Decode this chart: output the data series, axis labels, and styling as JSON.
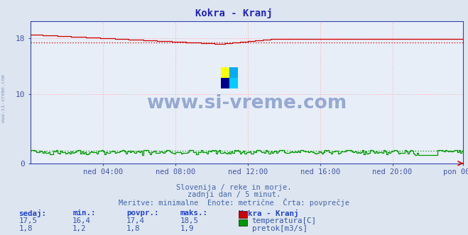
{
  "title": "Kokra - Kranj",
  "title_color": "#2222bb",
  "bg_color": "#dde5f0",
  "plot_bg_color": "#e8eef8",
  "grid_color_h": "#ffaaaa",
  "grid_color_v": "#ffaaaa",
  "x_label_color": "#4455aa",
  "y_label_color": "#4455aa",
  "ylim": [
    0,
    20.5
  ],
  "yticks": [
    0,
    10,
    18
  ],
  "xtick_labels": [
    "ned 04:00",
    "ned 08:00",
    "ned 12:00",
    "ned 16:00",
    "ned 20:00",
    "pon 00:00"
  ],
  "n_points": 288,
  "temp_color": "#cc0000",
  "flow_color": "#009900",
  "temp_avg": 17.4,
  "flow_avg": 1.8,
  "spine_color": "#3344aa",
  "watermark_color": "#3355aa",
  "watermark_alpha": 0.45,
  "footer_line1": "Slovenija / reke in morje.",
  "footer_line2": "zadnji dan / 5 minut.",
  "footer_line3": "Meritve: minimalne  Enote: metrične  Črta: povprečje",
  "footer_color": "#4466aa",
  "table_header": [
    "sedaj:",
    "min.:",
    "povpr.:",
    "maks.:",
    "Kokra - Kranj"
  ],
  "table_row1": [
    "17,5",
    "16,4",
    "17,4",
    "18,5"
  ],
  "table_row2": [
    "1,8",
    "1,2",
    "1,8",
    "1,9"
  ],
  "table_color_header": "#2244cc",
  "table_color_data": "#3355aa",
  "label_temp": "temperatura[C]",
  "label_flow": "pretok[m3/s]",
  "side_text": "www.si-vreme.com",
  "side_text_color": "#6688bb"
}
